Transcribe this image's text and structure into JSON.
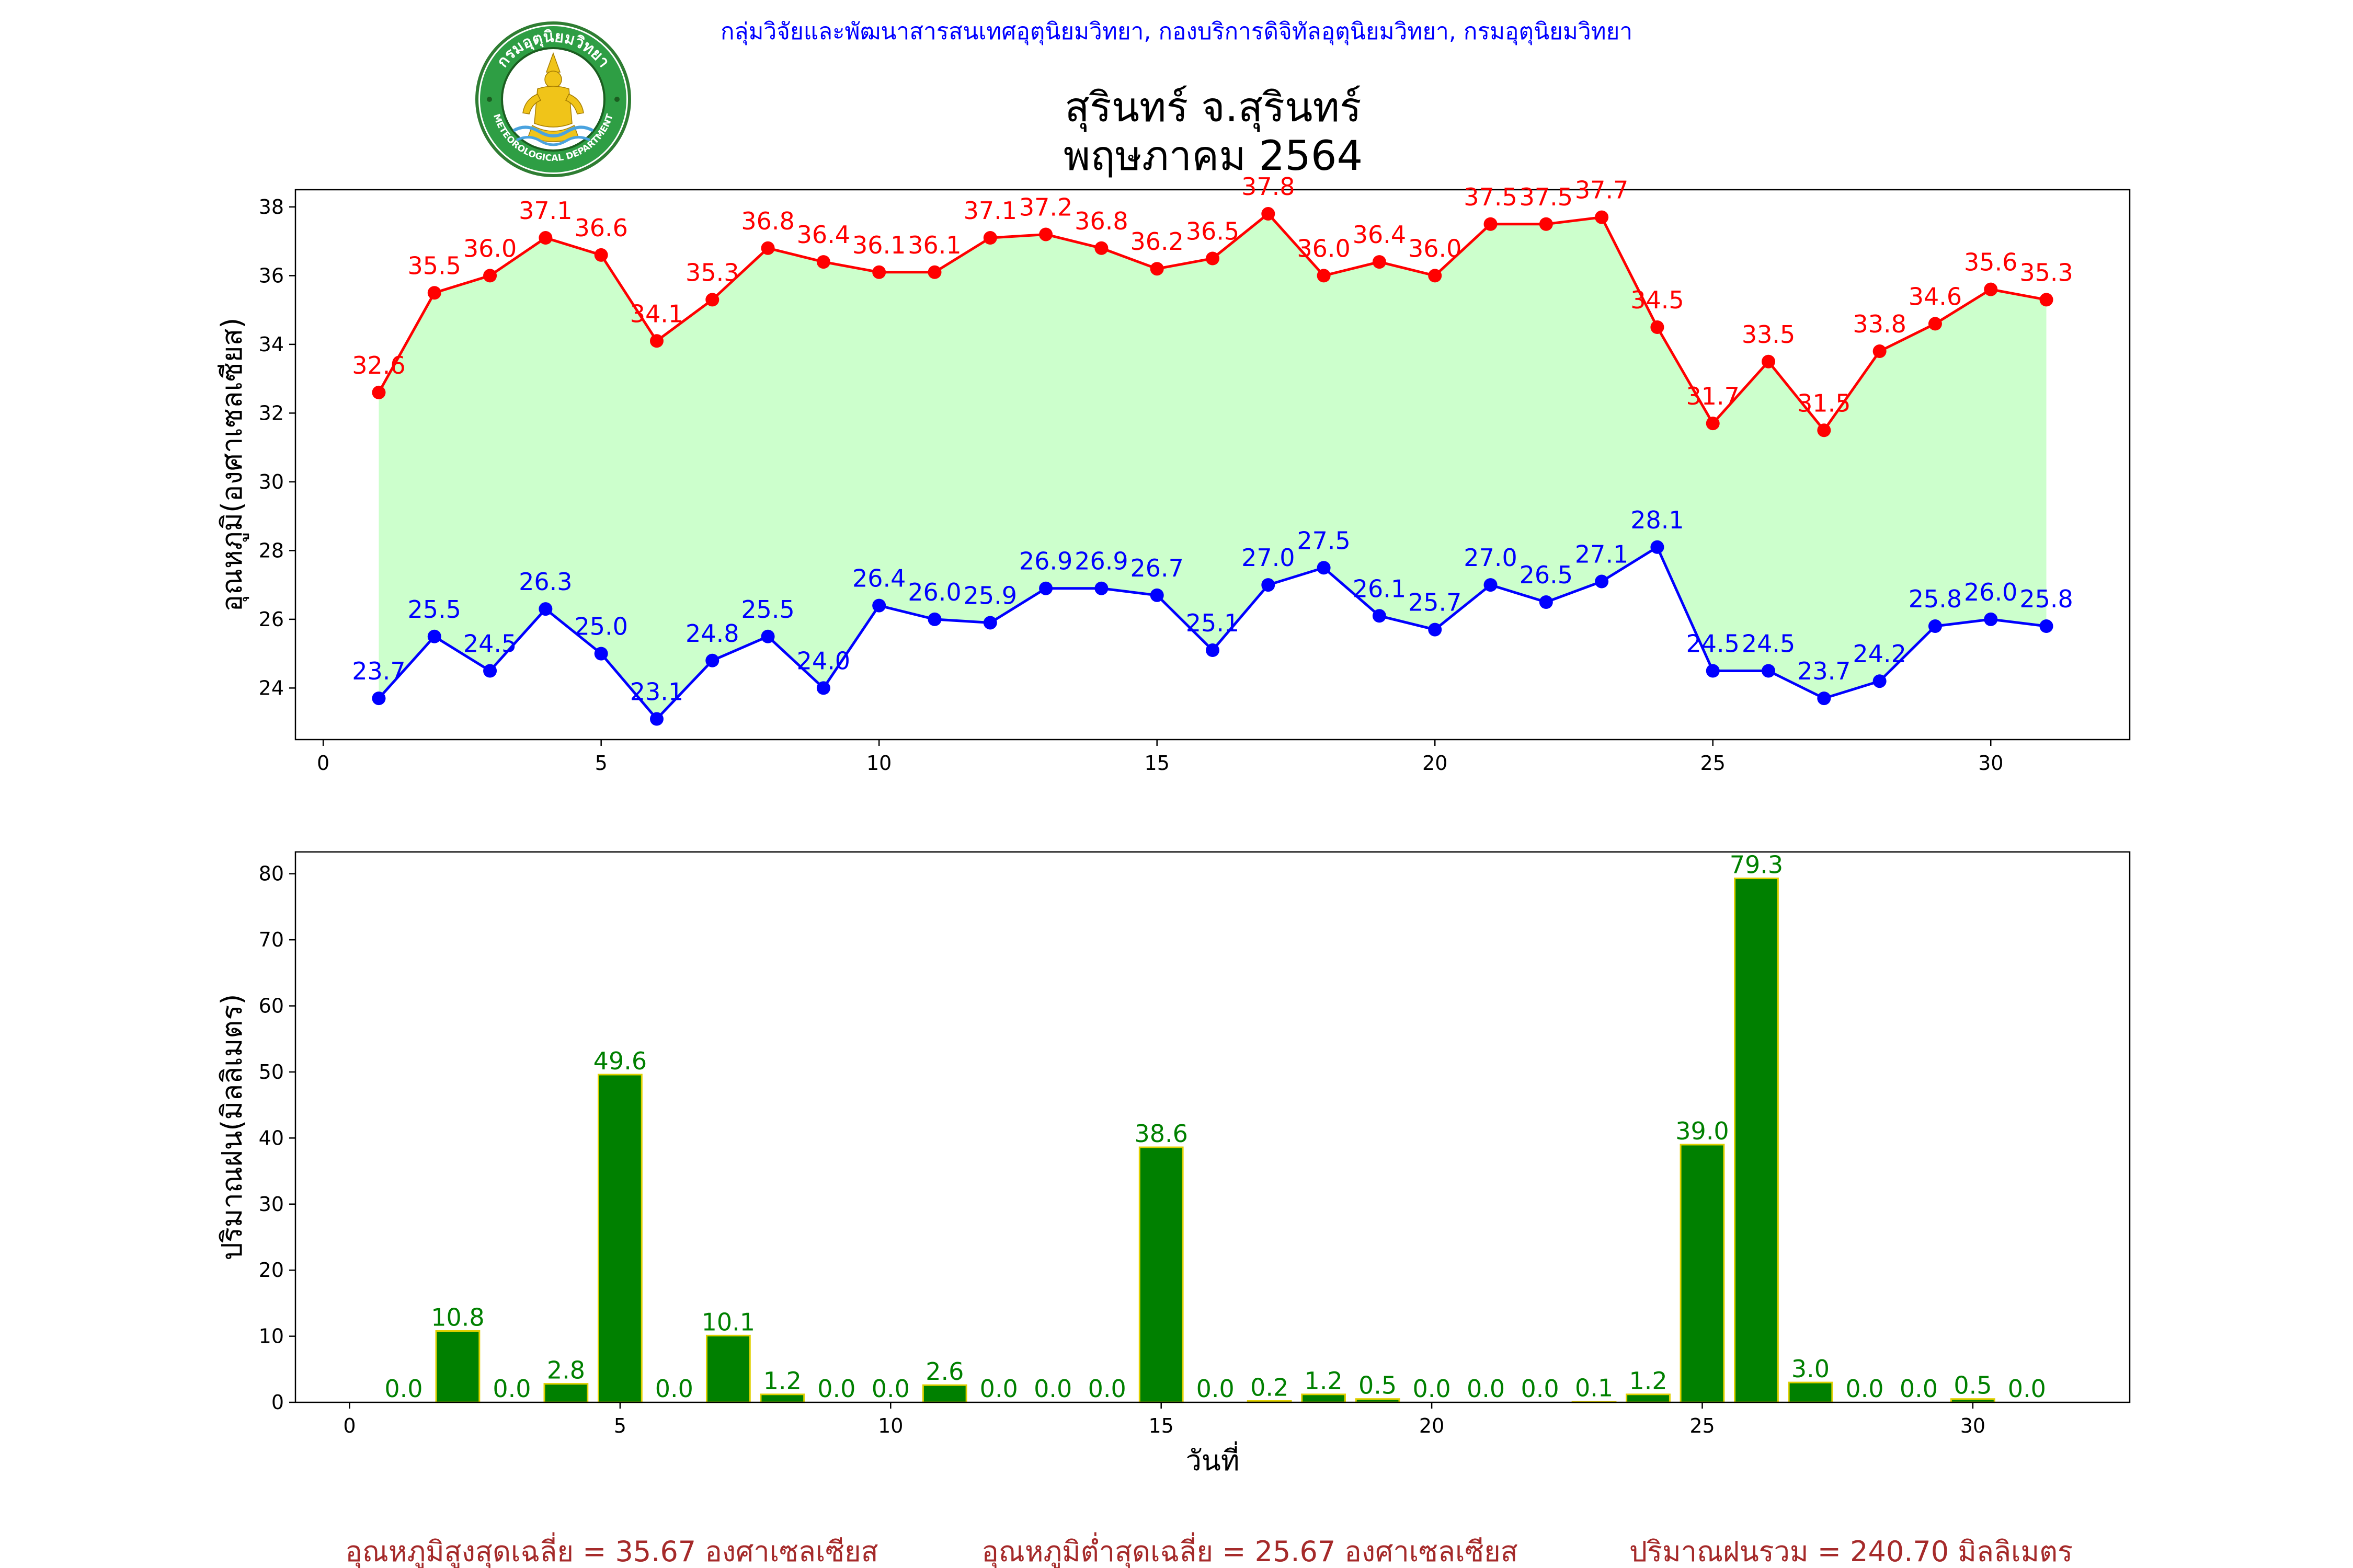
{
  "header": {
    "agency": "กลุ่มวิจัยและพัฒนาสารสนเทศอุตุนิยมวิทยา, กองบริการดิจิทัลอุตุนิยมวิทยา, กรมอุตุนิยมวิทยา",
    "title_line1": "สุรินทร์ จ.สุรินทร์",
    "title_line2": "พฤษภาคม 2564"
  },
  "logo": {
    "top_text": "กรมอุตุนิยมวิทยา",
    "bottom_text": "METEOROLOGICAL DEPARTMENT"
  },
  "footer": {
    "avg_max": "อุณหภูมิสูงสุดเฉลี่ย = 35.67 องศาเซลเซียส",
    "avg_min": "อุณหภูมิต่ำสุดเฉลี่ย = 25.67 องศาเซลเซียส",
    "total_rain": "ปริมาณฝนรวม = 240.70 มิลลิเมตร"
  },
  "colors": {
    "max_temp": "#ff0000",
    "min_temp": "#0000ff",
    "fill": "#ccffcc",
    "rain_bar": "#008000",
    "rain_edge": "#e0d000",
    "rain_label": "#008000",
    "footer_text": "#a52a2a",
    "agency_text": "#0000ff"
  },
  "chart_data": [
    {
      "type": "line",
      "ylabel": "อุณหภูมิ(องศาเซลเซียส)",
      "xlabel": "",
      "x": [
        1,
        2,
        3,
        4,
        5,
        6,
        7,
        8,
        9,
        10,
        11,
        12,
        13,
        14,
        15,
        16,
        17,
        18,
        19,
        20,
        21,
        22,
        23,
        24,
        25,
        26,
        27,
        28,
        29,
        30,
        31
      ],
      "xlim": [
        -0.5,
        32.5
      ],
      "ylim": [
        22.5,
        38.5
      ],
      "xticks": [
        0,
        5,
        10,
        15,
        20,
        25,
        30
      ],
      "yticks": [
        24,
        26,
        28,
        30,
        32,
        34,
        36,
        38
      ],
      "series": [
        {
          "key": "max",
          "values": [
            32.6,
            35.5,
            36.0,
            37.1,
            36.6,
            34.1,
            35.3,
            36.8,
            36.4,
            36.1,
            36.1,
            37.1,
            37.2,
            36.8,
            36.2,
            36.5,
            37.8,
            36.0,
            36.4,
            36.0,
            37.5,
            37.5,
            37.7,
            34.5,
            31.7,
            33.5,
            31.5,
            33.8,
            34.6,
            35.6,
            35.3
          ]
        },
        {
          "key": "min",
          "values": [
            23.7,
            25.5,
            24.5,
            26.3,
            25.0,
            23.1,
            24.8,
            25.5,
            24.0,
            26.4,
            26.0,
            25.9,
            26.9,
            26.9,
            26.7,
            25.1,
            27.0,
            27.5,
            26.1,
            25.7,
            27.0,
            26.5,
            27.1,
            28.1,
            24.5,
            24.5,
            23.7,
            24.2,
            25.8,
            26.0,
            25.8
          ]
        }
      ]
    },
    {
      "type": "bar",
      "ylabel": "ปริมาณฝน(มิลลิเมตร)",
      "xlabel": "วันที่",
      "x": [
        1,
        2,
        3,
        4,
        5,
        6,
        7,
        8,
        9,
        10,
        11,
        12,
        13,
        14,
        15,
        16,
        17,
        18,
        19,
        20,
        21,
        22,
        23,
        24,
        25,
        26,
        27,
        28,
        29,
        30,
        31
      ],
      "values": [
        0.0,
        10.8,
        0.0,
        2.8,
        49.6,
        0.0,
        10.1,
        1.2,
        0.0,
        0.0,
        2.6,
        0.0,
        0.0,
        0.0,
        38.6,
        0.0,
        0.2,
        1.2,
        0.5,
        0.0,
        0.0,
        0.0,
        0.1,
        1.2,
        39.0,
        79.3,
        3.0,
        0.0,
        0.0,
        0.5,
        0.0
      ],
      "xlim": [
        -1,
        32.9
      ],
      "ylim": [
        0,
        83.3
      ],
      "xticks": [
        0,
        5,
        10,
        15,
        20,
        25,
        30
      ],
      "yticks": [
        0,
        10,
        20,
        30,
        40,
        50,
        60,
        70,
        80
      ]
    }
  ]
}
